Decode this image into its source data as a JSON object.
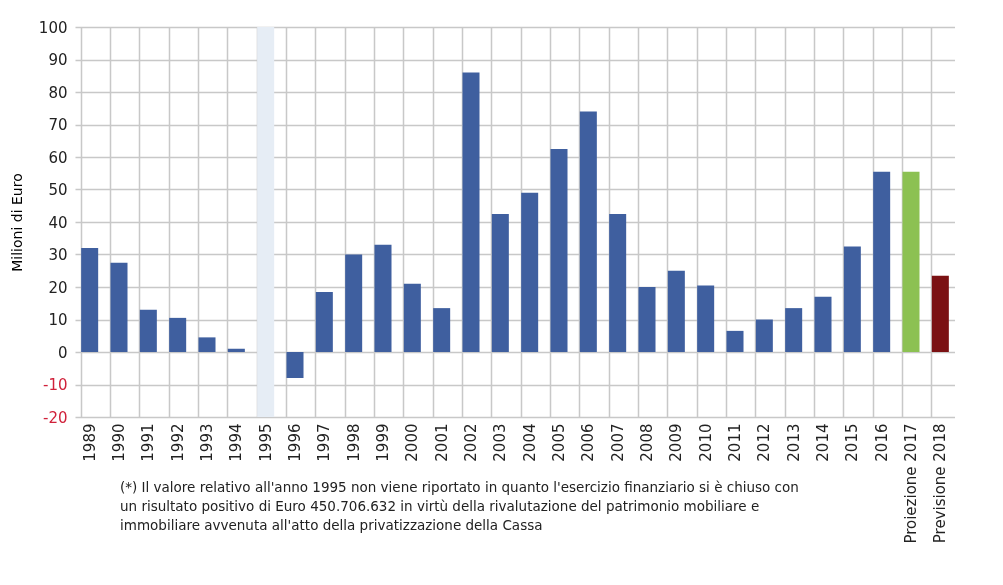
{
  "chart_data": {
    "type": "bar",
    "ylabel": "Milioni di Euro",
    "categories": [
      "1989",
      "1990",
      "1991",
      "1992",
      "1993",
      "1994",
      "1995",
      "1996",
      "1997",
      "1998",
      "1999",
      "2000",
      "2001",
      "2002",
      "2003",
      "2004",
      "2005",
      "2006",
      "2007",
      "2008",
      "2009",
      "2010",
      "2011",
      "2012",
      "2013",
      "2014",
      "2015",
      "2016",
      "Proiezione 2017",
      "Previsione 2018"
    ],
    "values": [
      32,
      27.5,
      13,
      10.5,
      4.5,
      1,
      null,
      -8,
      18.5,
      30,
      33,
      21,
      13.5,
      86,
      42.5,
      49,
      62.5,
      74,
      42.5,
      20,
      25,
      20.5,
      6.5,
      10,
      13.5,
      17,
      32.5,
      55.5,
      55.5,
      23.5
    ],
    "colors": [
      "#3f5f9f",
      "#3f5f9f",
      "#3f5f9f",
      "#3f5f9f",
      "#3f5f9f",
      "#3f5f9f",
      "#3f5f9f",
      "#3f5f9f",
      "#3f5f9f",
      "#3f5f9f",
      "#3f5f9f",
      "#3f5f9f",
      "#3f5f9f",
      "#3f5f9f",
      "#3f5f9f",
      "#3f5f9f",
      "#3f5f9f",
      "#3f5f9f",
      "#3f5f9f",
      "#3f5f9f",
      "#3f5f9f",
      "#3f5f9f",
      "#3f5f9f",
      "#3f5f9f",
      "#3f5f9f",
      "#3f5f9f",
      "#3f5f9f",
      "#3f5f9f",
      "#8cc152",
      "#7b1113"
    ],
    "ylim": [
      -20,
      100
    ],
    "yticks": [
      -20,
      -10,
      0,
      10,
      20,
      30,
      40,
      50,
      60,
      70,
      80,
      90,
      100
    ],
    "grid": true,
    "bands": [
      {
        "axis": "x",
        "from": "1995",
        "to": "1995",
        "color": "#e6edf5"
      }
    ],
    "annotations": [
      "(*) Il valore relativo all'anno 1995 non viene riportato in quanto l'esercizio finanziario si è chiuso con un risultato positivo di Euro  450.706.632 in virtù della rivalutazione del patrimonio mobiliare e immobiliare avvenuta all'atto della privatizzazione della Cassa"
    ]
  }
}
